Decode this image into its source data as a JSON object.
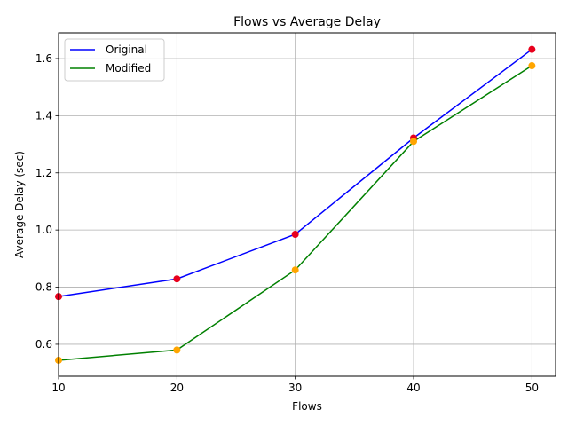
{
  "chart_data": {
    "type": "line",
    "title": "Flows vs Average Delay",
    "xlabel": "Flows",
    "ylabel": "Average Delay (sec)",
    "x": [
      10,
      20,
      30,
      40,
      50
    ],
    "xlim": [
      10,
      52
    ],
    "ylim": [
      0.488,
      1.69
    ],
    "xticks": [
      10,
      20,
      30,
      40,
      50
    ],
    "yticks": [
      0.6,
      0.8,
      1.0,
      1.2,
      1.4,
      1.6
    ],
    "xtick_labels": [
      "10",
      "20",
      "30",
      "40",
      "50"
    ],
    "ytick_labels": [
      "0.6",
      "0.8",
      "1.0",
      "1.2",
      "1.4",
      "1.6"
    ],
    "grid": true,
    "legend_position": "top-left",
    "series": [
      {
        "name": "Original",
        "values": [
          0.767,
          0.829,
          0.985,
          1.322,
          1.632
        ],
        "line_color": "#0000ff",
        "marker_color": "#e8001c"
      },
      {
        "name": "Modified",
        "values": [
          0.544,
          0.58,
          0.86,
          1.31,
          1.575
        ],
        "line_color": "#008000",
        "marker_color": "#ffa500"
      }
    ]
  }
}
